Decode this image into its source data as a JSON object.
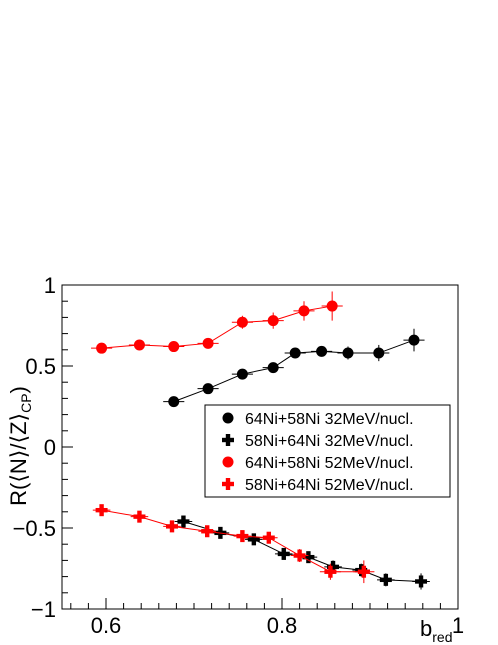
{
  "chart_data": {
    "type": "scatter",
    "title": "",
    "xlabel": "b",
    "xlabel_sub": "red",
    "ylabel_parts": {
      "pre": "R(⟨N⟩/⟨Z⟩",
      "sub": "CP",
      "post": ")"
    },
    "xlim": [
      0.55,
      1.0
    ],
    "ylim": [
      -1.0,
      1.0
    ],
    "x_ticks": [
      {
        "value": 0.6,
        "label": "0.6"
      },
      {
        "value": 0.8,
        "label": "0.8"
      },
      {
        "value": 1.0,
        "label": "1"
      }
    ],
    "y_ticks": [
      {
        "value": -1.0,
        "label": "−1"
      },
      {
        "value": -0.5,
        "label": "−0.5"
      },
      {
        "value": 0.0,
        "label": "0"
      },
      {
        "value": 0.5,
        "label": "0.5"
      },
      {
        "value": 1.0,
        "label": "1"
      }
    ],
    "grid": false,
    "legend_position": "center-right",
    "series": [
      {
        "name": "64Ni+58Ni 32MeV/nucl.",
        "color": "#000000",
        "marker": "circle",
        "x": [
          0.677,
          0.716,
          0.755,
          0.79,
          0.815,
          0.845,
          0.875,
          0.91,
          0.95
        ],
        "y": [
          0.28,
          0.36,
          0.45,
          0.49,
          0.58,
          0.59,
          0.58,
          0.58,
          0.66
        ],
        "xerr": [
          0.012,
          0.012,
          0.012,
          0.012,
          0.012,
          0.012,
          0.012,
          0.012,
          0.012
        ],
        "yerr": [
          0.03,
          0.03,
          0.03,
          0.03,
          0.03,
          0.03,
          0.04,
          0.05,
          0.07
        ]
      },
      {
        "name": "58Ni+64Ni 32MeV/nucl.",
        "color": "#000000",
        "marker": "cross",
        "x": [
          0.688,
          0.73,
          0.768,
          0.802,
          0.83,
          0.858,
          0.89,
          0.918,
          0.958
        ],
        "y": [
          -0.46,
          -0.53,
          -0.57,
          -0.66,
          -0.68,
          -0.74,
          -0.76,
          -0.82,
          -0.83
        ],
        "xerr": [
          0.01,
          0.01,
          0.01,
          0.01,
          0.01,
          0.01,
          0.01,
          0.01,
          0.01
        ],
        "yerr": [
          0.03,
          0.03,
          0.03,
          0.03,
          0.03,
          0.04,
          0.04,
          0.04,
          0.05
        ]
      },
      {
        "name": "64Ni+58Ni 52MeV/nucl.",
        "color": "#ff0000",
        "marker": "circle",
        "x": [
          0.595,
          0.638,
          0.677,
          0.716,
          0.755,
          0.79,
          0.825,
          0.857
        ],
        "y": [
          0.61,
          0.63,
          0.62,
          0.64,
          0.77,
          0.78,
          0.84,
          0.87
        ],
        "xerr": [
          0.012,
          0.012,
          0.012,
          0.012,
          0.012,
          0.012,
          0.012,
          0.012
        ],
        "yerr": [
          0.03,
          0.03,
          0.03,
          0.03,
          0.04,
          0.05,
          0.06,
          0.09
        ]
      },
      {
        "name": "58Ni+64Ni 52MeV/nucl.",
        "color": "#ff0000",
        "marker": "cross",
        "x": [
          0.595,
          0.638,
          0.675,
          0.715,
          0.755,
          0.785,
          0.82,
          0.855,
          0.893
        ],
        "y": [
          -0.39,
          -0.43,
          -0.49,
          -0.52,
          -0.55,
          -0.56,
          -0.67,
          -0.77,
          -0.77
        ],
        "xerr": [
          0.01,
          0.01,
          0.01,
          0.01,
          0.01,
          0.01,
          0.01,
          0.012,
          0.012
        ],
        "yerr": [
          0.03,
          0.03,
          0.03,
          0.03,
          0.03,
          0.03,
          0.04,
          0.05,
          0.07
        ]
      }
    ]
  }
}
